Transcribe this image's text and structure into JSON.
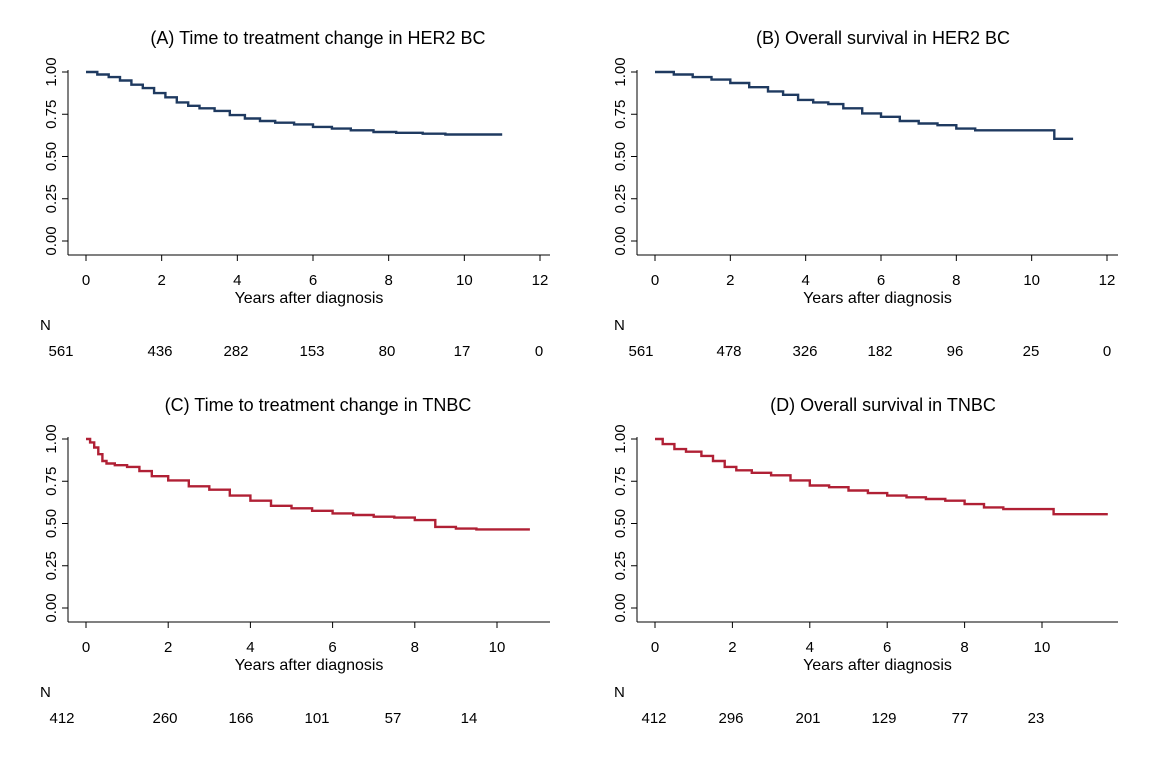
{
  "chart_data": [
    {
      "type": "line",
      "title": "(A) Time to treatment change in HER2 BC",
      "xlabel": "Years after diagnosis",
      "ylabel": "",
      "xlim": [
        0,
        12
      ],
      "ylim": [
        0,
        1
      ],
      "x_ticks": [
        0,
        2,
        4,
        6,
        8,
        10,
        12
      ],
      "y_ticks": [
        "0.00",
        "0.25",
        "0.50",
        "0.75",
        "1.00"
      ],
      "color": "#1f3a60",
      "grid": false,
      "series": [
        {
          "x": [
            0,
            0.3,
            0.6,
            0.9,
            1.2,
            1.5,
            1.8,
            2.1,
            2.4,
            2.7,
            3.0,
            3.4,
            3.8,
            4.2,
            4.6,
            5.0,
            5.5,
            6.0,
            6.5,
            7.0,
            7.6,
            8.2,
            8.9,
            9.5,
            10.2,
            11.0
          ],
          "y": [
            1.0,
            0.985,
            0.97,
            0.95,
            0.925,
            0.905,
            0.875,
            0.85,
            0.82,
            0.8,
            0.785,
            0.77,
            0.745,
            0.725,
            0.71,
            0.7,
            0.69,
            0.675,
            0.665,
            0.655,
            0.645,
            0.64,
            0.635,
            0.63,
            0.63,
            0.63
          ]
        }
      ],
      "risk_label": "N",
      "risk_x": [
        0,
        2,
        4,
        6,
        8,
        10,
        12
      ],
      "risk_values": [
        "561",
        "436",
        "282",
        "153",
        "80",
        "17",
        "0"
      ]
    },
    {
      "type": "line",
      "title": "(B) Overall survival in HER2 BC",
      "xlabel": "Years after diagnosis",
      "ylabel": "",
      "xlim": [
        0,
        12
      ],
      "ylim": [
        0,
        1
      ],
      "x_ticks": [
        0,
        2,
        4,
        6,
        8,
        10,
        12
      ],
      "y_ticks": [
        "0.00",
        "0.25",
        "0.50",
        "0.75",
        "1.00"
      ],
      "color": "#1f3a60",
      "grid": false,
      "series": [
        {
          "x": [
            0,
            0.5,
            1.0,
            1.5,
            2.0,
            2.5,
            3.0,
            3.4,
            3.8,
            4.2,
            4.6,
            5.0,
            5.5,
            6.0,
            6.5,
            7.0,
            7.5,
            8.0,
            8.5,
            9.0,
            9.5,
            10.0,
            10.6,
            11.1
          ],
          "y": [
            1.0,
            0.985,
            0.97,
            0.955,
            0.935,
            0.91,
            0.885,
            0.865,
            0.835,
            0.82,
            0.81,
            0.785,
            0.755,
            0.735,
            0.71,
            0.695,
            0.685,
            0.665,
            0.655,
            0.655,
            0.655,
            0.655,
            0.605,
            0.605
          ]
        }
      ],
      "risk_label": "N",
      "risk_x": [
        0,
        2,
        4,
        6,
        8,
        10,
        12
      ],
      "risk_values": [
        "561",
        "478",
        "326",
        "182",
        "96",
        "25",
        "0"
      ]
    },
    {
      "type": "line",
      "title": "(C) Time to treatment change in TNBC",
      "xlabel": "Years after diagnosis",
      "ylabel": "",
      "xlim": [
        0,
        11
      ],
      "ylim": [
        0,
        1
      ],
      "x_ticks": [
        0,
        2,
        4,
        6,
        8,
        10
      ],
      "y_ticks": [
        "0.00",
        "0.25",
        "0.50",
        "0.75",
        "1.00"
      ],
      "color": "#b02035",
      "grid": false,
      "series": [
        {
          "x": [
            0,
            0.1,
            0.2,
            0.3,
            0.4,
            0.5,
            0.7,
            1.0,
            1.3,
            1.6,
            2.0,
            2.5,
            3.0,
            3.5,
            4.0,
            4.5,
            5.0,
            5.5,
            6.0,
            6.5,
            7.0,
            7.5,
            8.0,
            8.5,
            9.0,
            9.5,
            10.0,
            10.8
          ],
          "y": [
            1.0,
            0.98,
            0.95,
            0.91,
            0.87,
            0.855,
            0.845,
            0.835,
            0.81,
            0.78,
            0.755,
            0.72,
            0.7,
            0.665,
            0.635,
            0.605,
            0.59,
            0.575,
            0.56,
            0.55,
            0.54,
            0.535,
            0.52,
            0.48,
            0.47,
            0.465,
            0.465,
            0.465
          ]
        }
      ],
      "risk_label": "N",
      "risk_x": [
        0,
        2,
        4,
        6,
        8,
        10
      ],
      "risk_values": [
        "412",
        "260",
        "166",
        "101",
        "57",
        "14"
      ]
    },
    {
      "type": "line",
      "title": "(D) Overall survival in TNBC",
      "xlabel": "Years after diagnosis",
      "ylabel": "",
      "xlim": [
        0,
        12
      ],
      "ylim": [
        0,
        1
      ],
      "x_ticks": [
        0,
        2,
        4,
        6,
        8,
        10
      ],
      "y_ticks": [
        "0.00",
        "0.25",
        "0.50",
        "0.75",
        "1.00"
      ],
      "color": "#b02035",
      "grid": false,
      "series": [
        {
          "x": [
            0,
            0.2,
            0.5,
            0.8,
            1.2,
            1.5,
            1.8,
            2.1,
            2.5,
            3.0,
            3.5,
            4.0,
            4.5,
            5.0,
            5.5,
            6.0,
            6.5,
            7.0,
            7.5,
            8.0,
            8.5,
            9.0,
            9.5,
            10.0,
            10.3,
            11.0,
            11.7
          ],
          "y": [
            1.0,
            0.97,
            0.94,
            0.925,
            0.9,
            0.87,
            0.835,
            0.815,
            0.8,
            0.785,
            0.755,
            0.725,
            0.715,
            0.695,
            0.68,
            0.665,
            0.655,
            0.645,
            0.635,
            0.615,
            0.595,
            0.585,
            0.585,
            0.585,
            0.555,
            0.555,
            0.555
          ]
        }
      ],
      "risk_label": "N",
      "risk_x": [
        0,
        2,
        4,
        6,
        8,
        10
      ],
      "risk_values": [
        "412",
        "296",
        "201",
        "129",
        "77",
        "23"
      ]
    }
  ]
}
